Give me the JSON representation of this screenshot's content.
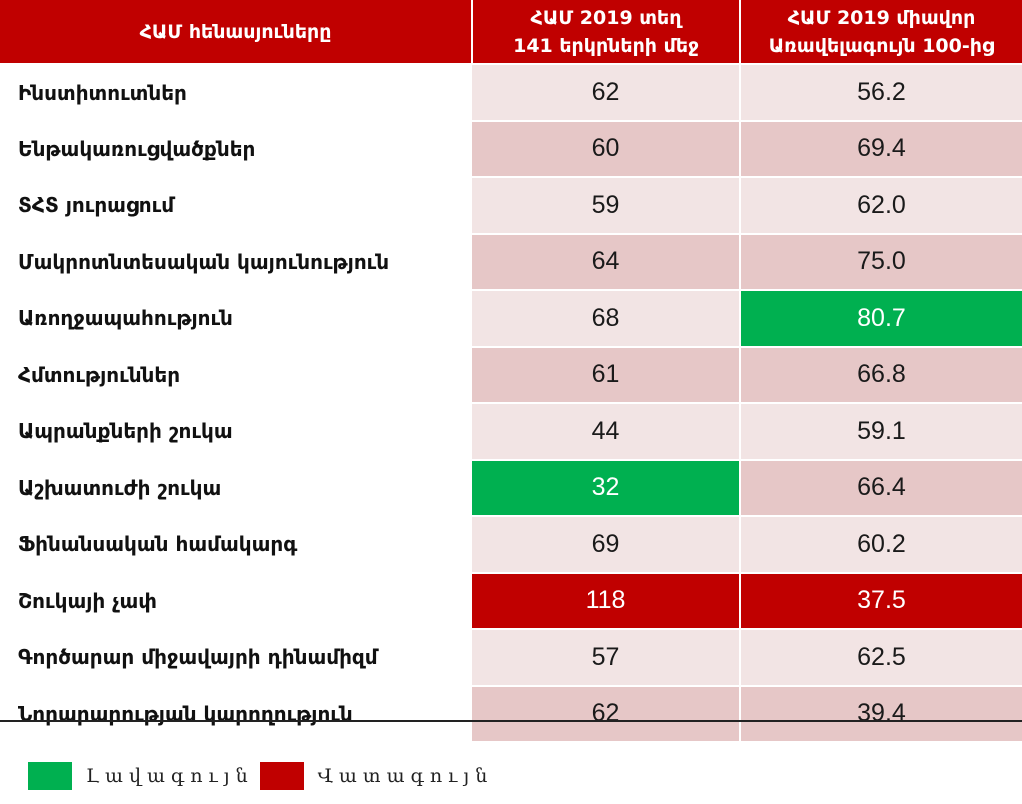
{
  "header": {
    "col1": "ՀԱՄ հենասյուները",
    "col2_line1": "ՀԱՄ 2019 տեղ",
    "col2_line2": "141 երկրների մեջ",
    "col3_line1": "ՀԱՄ 2019 միավոր",
    "col3_line2": "Առավելագույն 100-ից"
  },
  "rows": [
    {
      "label": "Ինստիտուտներ",
      "rank": "62",
      "score": "56.2"
    },
    {
      "label": "Ենթակառուցվածքներ",
      "rank": "60",
      "score": "69.4"
    },
    {
      "label": "ՏՀՏ յուրացում",
      "rank": "59",
      "score": "62.0"
    },
    {
      "label": "Մակրոտնտեսական կայունություն",
      "rank": "64",
      "score": "75.0"
    },
    {
      "label": "Առողջապահություն",
      "rank": "68",
      "score": "80.7"
    },
    {
      "label": "Հմտություններ",
      "rank": "61",
      "score": "66.8"
    },
    {
      "label": "Ապրանքների շուկա",
      "rank": "44",
      "score": "59.1"
    },
    {
      "label": "Աշխատուժի շուկա",
      "rank": "32",
      "score": "66.4"
    },
    {
      "label": "Ֆինանսական համակարգ",
      "rank": "69",
      "score": "60.2"
    },
    {
      "label": "Շուկայի չափ",
      "rank": "118",
      "score": "37.5"
    },
    {
      "label": "Գործարար միջավայրի դինամիզմ",
      "rank": "57",
      "score": "62.5"
    },
    {
      "label": "Նորարարության կարողություն",
      "rank": "62",
      "score": "39.4"
    }
  ],
  "legend": {
    "best_label": "Լավագույն",
    "worst_label": "Վատագույն"
  },
  "colors": {
    "header_red": "#c00000",
    "best_green": "#00b050",
    "worst_red": "#c00000",
    "row_light": "#f2e4e4",
    "row_dark": "#e6c7c7"
  }
}
